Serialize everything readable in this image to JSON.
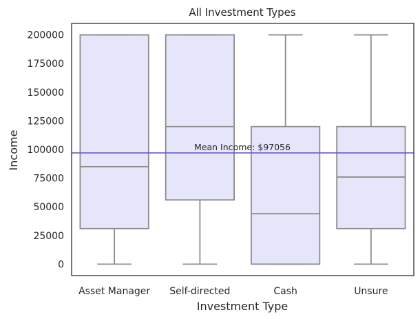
{
  "chart_data": {
    "type": "box",
    "title": "All Investment Types",
    "xlabel": "Investment Type",
    "ylabel": "Income",
    "ylim": [
      -10000,
      210000
    ],
    "yticks": [
      0,
      25000,
      50000,
      75000,
      100000,
      125000,
      150000,
      175000,
      200000
    ],
    "ytick_labels": [
      "0",
      "25000",
      "50000",
      "75000",
      "100000",
      "125000",
      "150000",
      "175000",
      "200000"
    ],
    "categories": [
      "Asset Manager",
      "Self-directed",
      "Cash",
      "Unsure"
    ],
    "boxes": [
      {
        "category": "Asset Manager",
        "whisker_low": 0,
        "q1": 31000,
        "median": 85000,
        "q3": 200000,
        "whisker_high": 200000
      },
      {
        "category": "Self-directed",
        "whisker_low": 0,
        "q1": 56000,
        "median": 120000,
        "q3": 200000,
        "whisker_high": 200000
      },
      {
        "category": "Cash",
        "whisker_low": 0,
        "q1": 0,
        "median": 44000,
        "q3": 120000,
        "whisker_high": 200000
      },
      {
        "category": "Unsure",
        "whisker_low": 0,
        "q1": 31000,
        "median": 76000,
        "q3": 120000,
        "whisker_high": 200000
      }
    ],
    "mean_line": {
      "value": 97056,
      "label": "Mean Income: $97056",
      "color": "#6a5acd"
    },
    "box_fill": "#e6e6fa",
    "box_edge": "#8c8c8c",
    "grid": false
  }
}
